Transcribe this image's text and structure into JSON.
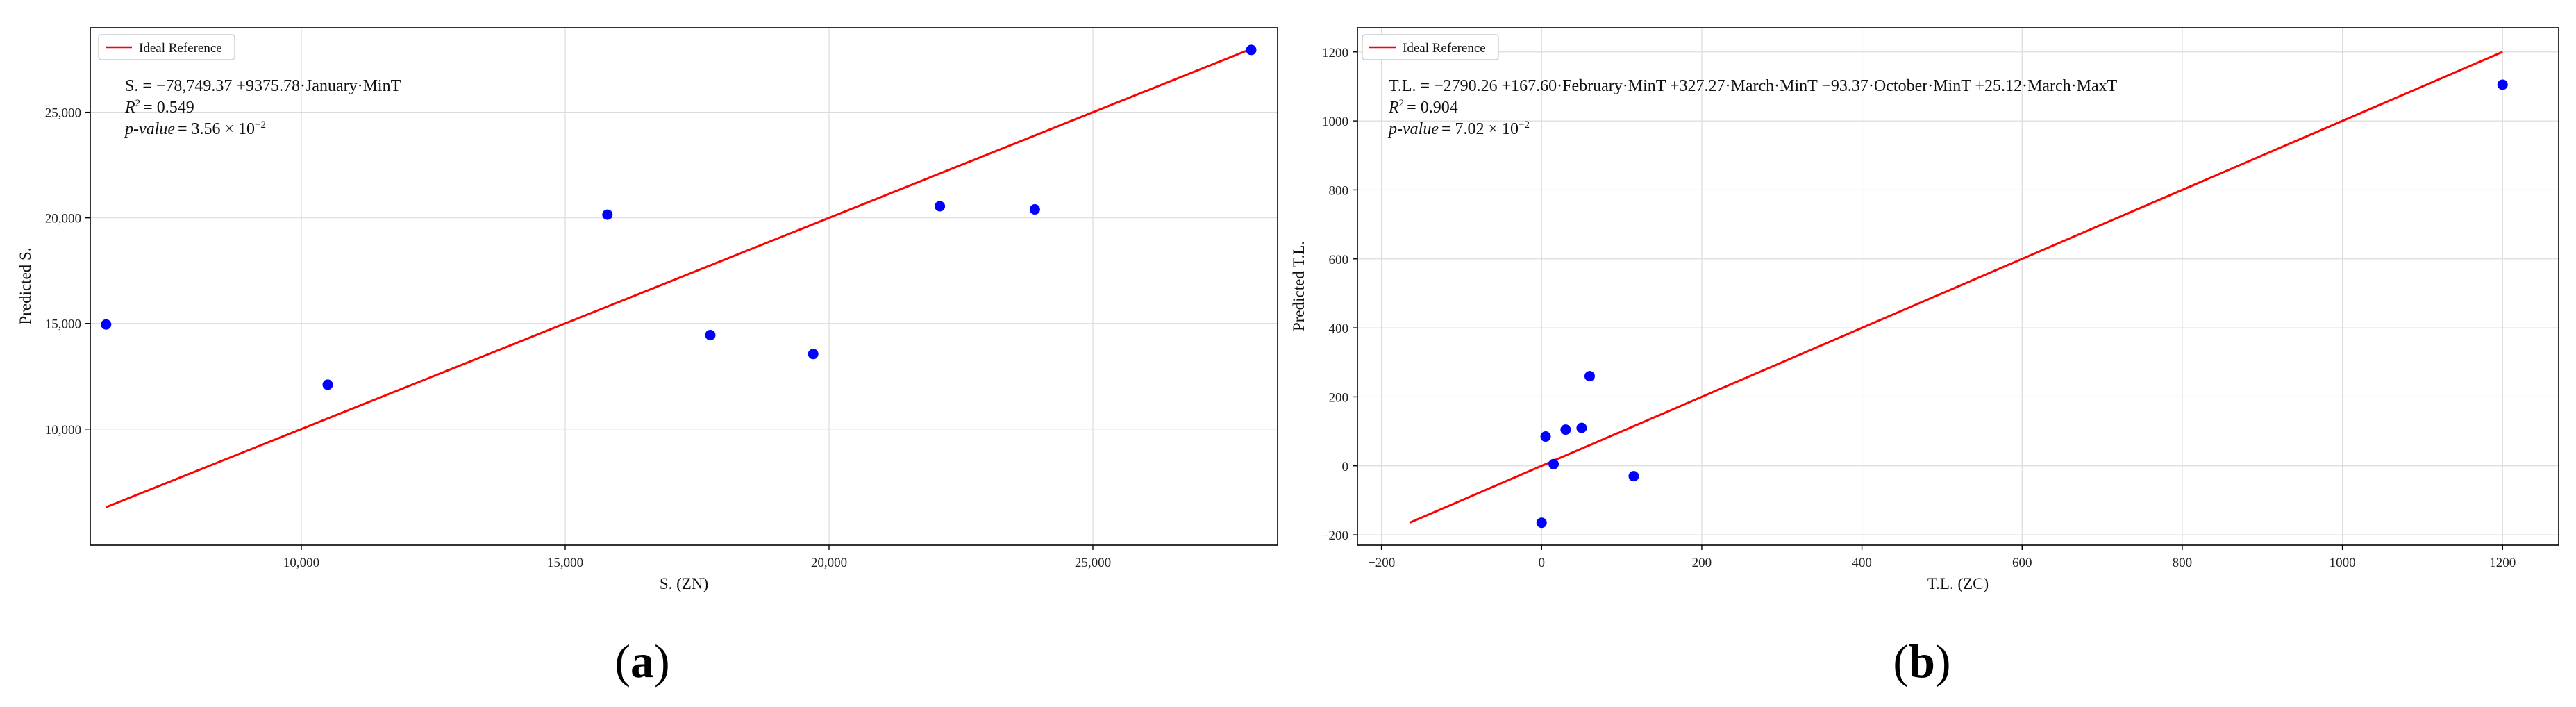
{
  "chart_data": [
    {
      "type": "scatter",
      "panel_label": "a",
      "xlabel": "S. (ZN)",
      "ylabel": "Predicted S.",
      "xlim": [
        6000,
        28500
      ],
      "ylim": [
        4500,
        29000
      ],
      "xticks": [
        10000,
        15000,
        20000,
        25000
      ],
      "yticks": [
        10000,
        15000,
        20000,
        25000
      ],
      "xtick_labels": [
        "10,000",
        "15,000",
        "20,000",
        "25,000"
      ],
      "ytick_labels": [
        "10,000",
        "15,000",
        "20,000",
        "25,000"
      ],
      "grid": true,
      "legend": {
        "position": "top-left",
        "entries": [
          {
            "label": "Ideal Reference",
            "color": "#ff0000"
          }
        ]
      },
      "reference_line": {
        "x": [
          6300,
          28000
        ],
        "y": [
          6300,
          28000
        ],
        "color": "#ff0000"
      },
      "annotation": {
        "equation": "S. = −78,749.37 +9375.78·January·MinT",
        "r2_label": "R",
        "r2_value": "= 0.549",
        "p_label": "p-value",
        "p_value": "= 3.56 × 10",
        "p_exp": "−2"
      },
      "points": {
        "color": "#0000ff",
        "x": [
          6300,
          10500,
          15800,
          17750,
          19700,
          22100,
          23900,
          28000
        ],
        "y": [
          14950,
          12100,
          20150,
          14450,
          13550,
          20550,
          20400,
          27950
        ]
      }
    },
    {
      "type": "scatter",
      "panel_label": "b",
      "xlabel": "T.L. (ZC)",
      "ylabel": "Predicted T.L.",
      "xlim": [
        -230,
        1270
      ],
      "ylim": [
        -230,
        1270
      ],
      "xticks": [
        -200,
        0,
        200,
        400,
        600,
        800,
        1000,
        1200
      ],
      "yticks": [
        -200,
        0,
        200,
        400,
        600,
        800,
        1000,
        1200
      ],
      "xtick_labels": [
        "−200",
        "0",
        "200",
        "400",
        "600",
        "800",
        "1000",
        "1200"
      ],
      "ytick_labels": [
        "−200",
        "0",
        "200",
        "400",
        "600",
        "800",
        "1000",
        "1200"
      ],
      "grid": true,
      "legend": {
        "position": "top-left",
        "entries": [
          {
            "label": "Ideal Reference",
            "color": "#ff0000"
          }
        ]
      },
      "reference_line": {
        "x": [
          -165,
          1200
        ],
        "y": [
          -165,
          1200
        ],
        "color": "#ff0000"
      },
      "annotation": {
        "equation": "T.L. = −2790.26 +167.60·February·MinT +327.27·March·MinT −93.37·October·MinT +25.12·March·MaxT",
        "r2_label": "R",
        "r2_value": "= 0.904",
        "p_label": "p-value",
        "p_value": "= 7.02 × 10",
        "p_exp": "−2"
      },
      "points": {
        "color": "#0000ff",
        "x": [
          0,
          5,
          15,
          30,
          50,
          60,
          115,
          1200
        ],
        "y": [
          -165,
          85,
          5,
          105,
          110,
          260,
          -30,
          1105
        ]
      }
    }
  ]
}
